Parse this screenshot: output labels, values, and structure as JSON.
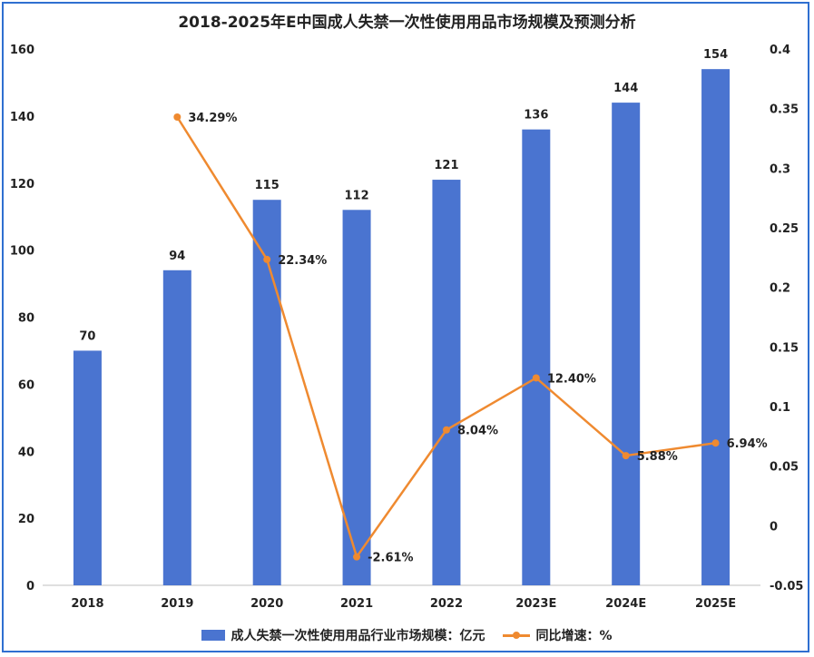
{
  "chart_data": {
    "type": "bar",
    "title": "2018-2025年E中国成人失禁一次性使用用品市场规模及预测分析",
    "categories": [
      "2018",
      "2019",
      "2020",
      "2021",
      "2022",
      "2023E",
      "2024E",
      "2025E"
    ],
    "series": [
      {
        "name": "成人失禁一次性使用用品行业市场规模：亿元",
        "type": "bar",
        "axis": "left",
        "values": [
          70,
          94,
          115,
          112,
          121,
          136,
          144,
          154
        ],
        "labels": [
          "70",
          "94",
          "115",
          "112",
          "121",
          "136",
          "144",
          "154"
        ]
      },
      {
        "name": "同比增速：%",
        "type": "line",
        "axis": "right",
        "values": [
          null,
          0.3429,
          0.2234,
          -0.0261,
          0.0804,
          0.124,
          0.0588,
          0.0694
        ],
        "labels": [
          "",
          "34.29%",
          "22.34%",
          "-2.61%",
          "8.04%",
          "12.40%",
          "5.88%",
          "6.94%"
        ]
      }
    ],
    "y_left": {
      "min": 0,
      "max": 160,
      "step": 20,
      "ticks": [
        "0",
        "20",
        "40",
        "60",
        "80",
        "100",
        "120",
        "140",
        "160"
      ]
    },
    "y_right": {
      "min": -0.05,
      "max": 0.4,
      "step": 0.05,
      "ticks": [
        "-0.05",
        "0",
        "0.05",
        "0.1",
        "0.15",
        "0.2",
        "0.25",
        "0.3",
        "0.35",
        "0.4"
      ]
    },
    "grid": false,
    "legend": "bottom",
    "colors": {
      "bar": "#4a74d0",
      "line": "#ef8a30"
    }
  }
}
